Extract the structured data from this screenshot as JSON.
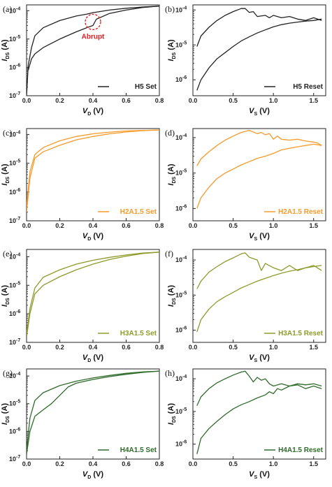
{
  "chart_data": [
    {
      "panel": "(a)",
      "type": "line",
      "color": "#222222",
      "legend": "H5 Set",
      "legend_placement": "bottom-right",
      "xlim": [
        0,
        0.8
      ],
      "ylim": [
        1e-07,
        0.00016
      ],
      "yscale": "log",
      "xticks": [
        "0.0",
        "0.2",
        "0.4",
        "0.6",
        "0.8"
      ],
      "yticks": [
        "10-7",
        "10-6",
        "10-5",
        "10-4"
      ],
      "annotation": "Abrupt",
      "series": [
        {
          "x": [
            0,
            0.01,
            0.03,
            0.05,
            0.1,
            0.2,
            0.3,
            0.36,
            0.4,
            0.5,
            0.6,
            0.7,
            0.8
          ],
          "y": [
            1e-07,
            1.2e-06,
            5e-06,
            1.3e-05,
            2.5e-05,
            4.5e-05,
            6.5e-05,
            7.5e-05,
            8.5e-05,
            0.000105,
            0.000122,
            0.000135,
            0.000145
          ]
        },
        {
          "x": [
            0.01,
            0.03,
            0.05,
            0.1,
            0.2,
            0.3,
            0.37,
            0.4,
            0.42,
            0.5,
            0.6,
            0.7,
            0.8
          ],
          "y": [
            8e-07,
            2e-06,
            3e-06,
            5e-06,
            1e-05,
            1.8e-05,
            2.6e-05,
            3e-05,
            5e-05,
            8e-05,
            0.000105,
            0.00013,
            0.000145
          ]
        }
      ]
    },
    {
      "panel": "(b)",
      "type": "line",
      "color": "#222222",
      "legend": "H5 Reset",
      "legend_placement": "bottom-right",
      "xlim": [
        0,
        1.65
      ],
      "ylim": [
        3.5e-07,
        0.00014
      ],
      "yscale": "log",
      "xticks": [
        "0.0",
        "0.5",
        "1.0",
        "1.5"
      ],
      "yticks": [
        "10-6",
        "10-5",
        "10-4"
      ],
      "series": [
        {
          "x": [
            0.05,
            0.1,
            0.2,
            0.3,
            0.4,
            0.5,
            0.6,
            0.65,
            0.7,
            0.75,
            0.8,
            0.9,
            0.95,
            1.0,
            1.1,
            1.2,
            1.3,
            1.4,
            1.5,
            1.6
          ],
          "y": [
            9e-06,
            1.8e-05,
            3.2e-05,
            5e-05,
            7e-05,
            9e-05,
            0.00011,
            0.00011,
            8.5e-05,
            9e-05,
            6.5e-05,
            7e-05,
            6e-05,
            7e-05,
            6e-05,
            6.5e-05,
            5.5e-05,
            5e-05,
            6e-05,
            5e-05
          ]
        },
        {
          "x": [
            0.05,
            0.1,
            0.2,
            0.3,
            0.4,
            0.5,
            0.6,
            0.7,
            0.8,
            0.9,
            1.0,
            1.1,
            1.2,
            1.3,
            1.4,
            1.5,
            1.6
          ],
          "y": [
            5e-07,
            1e-06,
            2.2e-06,
            4e-06,
            6e-06,
            9e-06,
            1.3e-05,
            1.7e-05,
            2.2e-05,
            2.7e-05,
            3.3e-05,
            3.8e-05,
            4.2e-05,
            4.5e-05,
            4.8e-05,
            5e-05,
            5.5e-05
          ]
        }
      ]
    },
    {
      "panel": "(c)",
      "type": "line",
      "color": "#f79a2a",
      "legend": "H2A1.5 Set",
      "legend_placement": "bottom-right",
      "xlim": [
        0,
        0.8
      ],
      "ylim": [
        1e-07,
        0.00016
      ],
      "yscale": "log",
      "xticks": [
        "0.0",
        "0.2",
        "0.4",
        "0.6",
        "0.8"
      ],
      "yticks": [
        "10-7",
        "10-6",
        "10-5",
        "10-4"
      ],
      "series": [
        {
          "x": [
            0,
            0.02,
            0.05,
            0.1,
            0.2,
            0.3,
            0.4,
            0.5,
            0.6,
            0.7,
            0.8
          ],
          "y": [
            3e-07,
            5e-06,
            2e-05,
            3.5e-05,
            6e-05,
            8.5e-05,
            0.000105,
            0.00012,
            0.000132,
            0.000138,
            0.000142
          ]
        },
        {
          "x": [
            0,
            0.02,
            0.05,
            0.1,
            0.2,
            0.3,
            0.4,
            0.5,
            0.6,
            0.7,
            0.8
          ],
          "y": [
            2e-07,
            3e-06,
            1.5e-05,
            2.5e-05,
            4.2e-05,
            6.5e-05,
            8.5e-05,
            0.000105,
            0.000122,
            0.000135,
            0.000142
          ]
        }
      ]
    },
    {
      "panel": "(d)",
      "type": "line",
      "color": "#f79a2a",
      "legend": "H2A1.5 Reset",
      "legend_placement": "bottom-right",
      "xlim": [
        0,
        1.65
      ],
      "ylim": [
        4.5e-07,
        0.00018
      ],
      "yscale": "log",
      "xticks": [
        "0.0",
        "0.5",
        "1.0",
        "1.5"
      ],
      "yticks": [
        "10-6",
        "10-5",
        "10-4"
      ],
      "series": [
        {
          "x": [
            0.05,
            0.1,
            0.2,
            0.3,
            0.4,
            0.5,
            0.6,
            0.7,
            0.8,
            0.85,
            0.9,
            0.95,
            1.0,
            1.05,
            1.1,
            1.2,
            1.3,
            1.4,
            1.5,
            1.55,
            1.6
          ],
          "y": [
            1.6e-05,
            2.5e-05,
            4e-05,
            6e-05,
            8.5e-05,
            0.00011,
            0.00014,
            0.00016,
            0.00013,
            0.00014,
            0.00012,
            0.00013,
            9e-05,
            0.00011,
            9e-05,
            8.5e-05,
            9e-05,
            8e-05,
            7.5e-05,
            7e-05,
            6e-05
          ]
        },
        {
          "x": [
            0.05,
            0.1,
            0.2,
            0.3,
            0.4,
            0.5,
            0.6,
            0.7,
            0.8,
            0.9,
            1.0,
            1.1,
            1.2,
            1.3,
            1.4,
            1.5,
            1.6
          ],
          "y": [
            1e-06,
            2e-06,
            4e-06,
            7e-06,
            1e-05,
            1.3e-05,
            1.7e-05,
            2.1e-05,
            2.6e-05,
            3e-05,
            3.6e-05,
            4.5e-05,
            5e-05,
            5.5e-05,
            6e-05,
            6.5e-05,
            6e-05
          ]
        }
      ]
    },
    {
      "panel": "(e)",
      "type": "line",
      "color": "#8f9a2a",
      "legend": "H3A1.5 Set",
      "legend_placement": "bottom-right",
      "xlim": [
        0,
        0.8
      ],
      "ylim": [
        1e-07,
        0.00018
      ],
      "yscale": "log",
      "xticks": [
        "0.0",
        "0.2",
        "0.4",
        "0.6",
        "0.8"
      ],
      "yticks": [
        "10-7",
        "10-6",
        "10-5",
        "10-4"
      ],
      "series": [
        {
          "x": [
            0,
            0.02,
            0.05,
            0.1,
            0.2,
            0.3,
            0.4,
            0.5,
            0.6,
            0.7,
            0.8
          ],
          "y": [
            2e-07,
            1.5e-06,
            8e-06,
            1.9e-05,
            3.5e-05,
            5.5e-05,
            7.5e-05,
            9.5e-05,
            0.000115,
            0.000135,
            0.000145
          ]
        },
        {
          "x": [
            0,
            0.02,
            0.05,
            0.1,
            0.2,
            0.3,
            0.4,
            0.5,
            0.6,
            0.7,
            0.8
          ],
          "y": [
            1.5e-07,
            1e-06,
            5e-06,
            1e-05,
            2e-05,
            3.5e-05,
            5.5e-05,
            8e-05,
            0.000105,
            0.00013,
            0.000145
          ]
        }
      ]
    },
    {
      "panel": "(f)",
      "type": "line",
      "color": "#8f9a2a",
      "legend": "H3A1.5 Reset",
      "legend_placement": "bottom-right",
      "xlim": [
        0,
        1.65
      ],
      "ylim": [
        4.5e-07,
        0.0002
      ],
      "yscale": "log",
      "xticks": [
        "0.0",
        "0.5",
        "1.0",
        "1.5"
      ],
      "yticks": [
        "10-6",
        "10-5",
        "10-4"
      ],
      "series": [
        {
          "x": [
            0.05,
            0.1,
            0.2,
            0.3,
            0.4,
            0.5,
            0.6,
            0.65,
            0.7,
            0.8,
            0.85,
            0.9,
            1.0,
            1.1,
            1.2,
            1.3,
            1.4,
            1.5,
            1.6
          ],
          "y": [
            1.5e-05,
            2.5e-05,
            4.5e-05,
            6.5e-05,
            9e-05,
            0.000115,
            0.00015,
            0.00016,
            0.00012,
            0.0001,
            5e-05,
            8e-05,
            6e-05,
            5e-05,
            7e-05,
            5e-05,
            6e-05,
            7e-05,
            5e-05
          ]
        },
        {
          "x": [
            0.05,
            0.1,
            0.2,
            0.3,
            0.4,
            0.5,
            0.6,
            0.7,
            0.8,
            0.9,
            1.0,
            1.1,
            1.2,
            1.3,
            1.4,
            1.5,
            1.6
          ],
          "y": [
            9e-07,
            2e-06,
            4e-06,
            6.5e-06,
            9e-06,
            1.2e-05,
            1.6e-05,
            2e-05,
            2.5e-05,
            3e-05,
            3.6e-05,
            4.2e-05,
            4.8e-05,
            5.3e-05,
            6e-05,
            6.5e-05,
            7e-05
          ]
        }
      ]
    },
    {
      "panel": "(g)",
      "type": "line",
      "color": "#2f6b2a",
      "legend": "H4A1.5 Set",
      "legend_placement": "bottom-right",
      "xlim": [
        0,
        0.8
      ],
      "ylim": [
        1e-07,
        0.00018
      ],
      "yscale": "log",
      "xticks": [
        "0.0",
        "0.2",
        "0.4",
        "0.6",
        "0.8"
      ],
      "yticks": [
        "10-7",
        "10-6",
        "10-5",
        "10-4"
      ],
      "series": [
        {
          "x": [
            0,
            0.02,
            0.05,
            0.1,
            0.2,
            0.3,
            0.4,
            0.5,
            0.6,
            0.7,
            0.8
          ],
          "y": [
            2e-07,
            3e-06,
            1.3e-05,
            2.5e-05,
            4.5e-05,
            6.5e-05,
            8.5e-05,
            0.000105,
            0.000125,
            0.00014,
            0.00015
          ]
        },
        {
          "x": [
            0,
            0.02,
            0.05,
            0.1,
            0.15,
            0.2,
            0.25,
            0.3,
            0.4,
            0.5,
            0.6,
            0.7,
            0.8
          ],
          "y": [
            1.5e-07,
            1e-06,
            3.5e-06,
            6e-06,
            1e-05,
            2e-05,
            4e-05,
            5.5e-05,
            7.5e-05,
            9.5e-05,
            0.000115,
            0.000135,
            0.00015
          ]
        }
      ]
    },
    {
      "panel": "(h)",
      "type": "line",
      "color": "#2f6b2a",
      "legend": "H4A1.5 Reset",
      "legend_placement": "bottom-right",
      "xlim": [
        0,
        1.65
      ],
      "ylim": [
        3.5e-07,
        0.0002
      ],
      "yscale": "log",
      "xticks": [
        "0.0",
        "0.5",
        "1.0",
        "1.5"
      ],
      "yticks": [
        "10-6",
        "10-5",
        "10-4"
      ],
      "series": [
        {
          "x": [
            0.05,
            0.1,
            0.2,
            0.3,
            0.4,
            0.5,
            0.6,
            0.65,
            0.7,
            0.75,
            0.8,
            0.85,
            0.9,
            0.95,
            1.0,
            1.1,
            1.2,
            1.3,
            1.4,
            1.5,
            1.6
          ],
          "y": [
            1.5e-05,
            2.8e-05,
            5e-05,
            7.5e-05,
            0.0001,
            0.00013,
            0.00016,
            0.00017,
            0.00012,
            8e-05,
            0.00011,
            9e-05,
            0.0001,
            7e-05,
            6e-05,
            7e-05,
            6e-05,
            6.5e-05,
            5e-05,
            6e-05,
            5e-05
          ]
        },
        {
          "x": [
            0.05,
            0.1,
            0.2,
            0.3,
            0.4,
            0.5,
            0.6,
            0.7,
            0.8,
            0.9,
            0.95,
            1.0,
            1.05,
            1.1,
            1.2,
            1.3,
            1.4,
            1.5,
            1.6
          ],
          "y": [
            5e-07,
            1.5e-06,
            3e-06,
            5e-06,
            8e-06,
            1.2e-05,
            1.6e-05,
            2e-05,
            2.6e-05,
            3.2e-05,
            4e-05,
            3.5e-05,
            5e-05,
            4.5e-05,
            6e-05,
            7e-05,
            6.5e-05,
            7e-05,
            6e-05
          ]
        }
      ]
    }
  ],
  "axis_text": {
    "set_xlabel": "V",
    "set_xsub": "D",
    "reset_xlabel": "V",
    "reset_xsub": "S",
    "unit": "(V)",
    "ylabel": "I",
    "ysub": "DS",
    "yunit": "(A)"
  }
}
